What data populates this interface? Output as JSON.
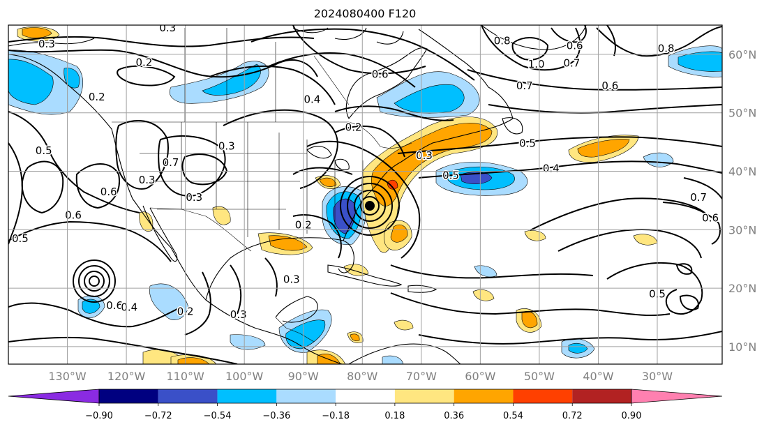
{
  "title": "2024080400 F120",
  "map": {
    "lon_range": [
      -140,
      -19
    ],
    "lat_range": [
      7,
      65
    ],
    "lon_ticks": [
      {
        "value": -130,
        "label": "130°W"
      },
      {
        "value": -120,
        "label": "120°W"
      },
      {
        "value": -110,
        "label": "110°W"
      },
      {
        "value": -100,
        "label": "100°W"
      },
      {
        "value": -90,
        "label": "90°W"
      },
      {
        "value": -80,
        "label": "80°W"
      },
      {
        "value": -70,
        "label": "70°W"
      },
      {
        "value": -60,
        "label": "60°W"
      },
      {
        "value": -50,
        "label": "50°W"
      },
      {
        "value": -40,
        "label": "40°W"
      },
      {
        "value": -30,
        "label": "30°W"
      }
    ],
    "lat_ticks": [
      {
        "value": 60,
        "label": "60°N"
      },
      {
        "value": 50,
        "label": "50°N"
      },
      {
        "value": 40,
        "label": "40°N"
      },
      {
        "value": 30,
        "label": "30°N"
      },
      {
        "value": 20,
        "label": "20°N"
      },
      {
        "value": 10,
        "label": "10°N"
      }
    ],
    "grid": true,
    "contour_labels": [
      {
        "text": "0.3",
        "lon": -133.5,
        "lat": 61.8
      },
      {
        "text": "0.2",
        "lon": -117,
        "lat": 58.6
      },
      {
        "text": "0.3",
        "lon": -113,
        "lat": 64.5
      },
      {
        "text": "0.2",
        "lon": -125,
        "lat": 52.7
      },
      {
        "text": "0.5",
        "lon": -134,
        "lat": 43.5
      },
      {
        "text": "0.6",
        "lon": -129,
        "lat": 32.5
      },
      {
        "text": "0.6",
        "lon": -123,
        "lat": 36.5
      },
      {
        "text": "0.5",
        "lon": -138,
        "lat": 28.5
      },
      {
        "text": "0.3",
        "lon": -116.5,
        "lat": 38.5
      },
      {
        "text": "0.7",
        "lon": -112.5,
        "lat": 41.5
      },
      {
        "text": "0.3",
        "lon": -108.5,
        "lat": 35.5
      },
      {
        "text": "0.3",
        "lon": -103,
        "lat": 44.3
      },
      {
        "text": "0.4",
        "lon": -88.5,
        "lat": 52.3
      },
      {
        "text": "0.2",
        "lon": -81.5,
        "lat": 47.5
      },
      {
        "text": "0.2",
        "lon": -90,
        "lat": 30.8
      },
      {
        "text": "0.3",
        "lon": -92,
        "lat": 21.5
      },
      {
        "text": "0.3",
        "lon": -101,
        "lat": 15.5
      },
      {
        "text": "0.2",
        "lon": -110,
        "lat": 16
      },
      {
        "text": "0.6",
        "lon": -122,
        "lat": 17
      },
      {
        "text": "0.4",
        "lon": -119.5,
        "lat": 16.7
      },
      {
        "text": "0.6",
        "lon": -77,
        "lat": 56.6
      },
      {
        "text": "0.3",
        "lon": -69.5,
        "lat": 42.7
      },
      {
        "text": "0.5",
        "lon": -65,
        "lat": 39.3
      },
      {
        "text": "0.8",
        "lon": -56.3,
        "lat": 62.3
      },
      {
        "text": "1.0",
        "lon": -50.5,
        "lat": 58.3
      },
      {
        "text": "0.6",
        "lon": -44,
        "lat": 61.5
      },
      {
        "text": "0.7",
        "lon": -44.5,
        "lat": 58.5
      },
      {
        "text": "0.7",
        "lon": -52.5,
        "lat": 54.6
      },
      {
        "text": "0.6",
        "lon": -38,
        "lat": 54.6
      },
      {
        "text": "0.8",
        "lon": -28.5,
        "lat": 61
      },
      {
        "text": "0.5",
        "lon": -52,
        "lat": 44.8
      },
      {
        "text": "0.4",
        "lon": -48,
        "lat": 40.5
      },
      {
        "text": "0.7",
        "lon": -23,
        "lat": 35.5
      },
      {
        "text": "0.6",
        "lon": -21,
        "lat": 32
      },
      {
        "text": "0.5",
        "lon": -30,
        "lat": 19
      }
    ]
  },
  "colorbar": {
    "ticks": [
      "−0.90",
      "−0.72",
      "−0.54",
      "−0.36",
      "−0.18",
      "0.18",
      "0.36",
      "0.54",
      "0.72",
      "0.90"
    ],
    "colors": [
      "#8a2be2",
      "#000080",
      "#3a50c8",
      "#00bfff",
      "#aadcff",
      "#ffffff",
      "#ffe680",
      "#ffa500",
      "#ff4000",
      "#b22222",
      "#ff80b0"
    ]
  }
}
